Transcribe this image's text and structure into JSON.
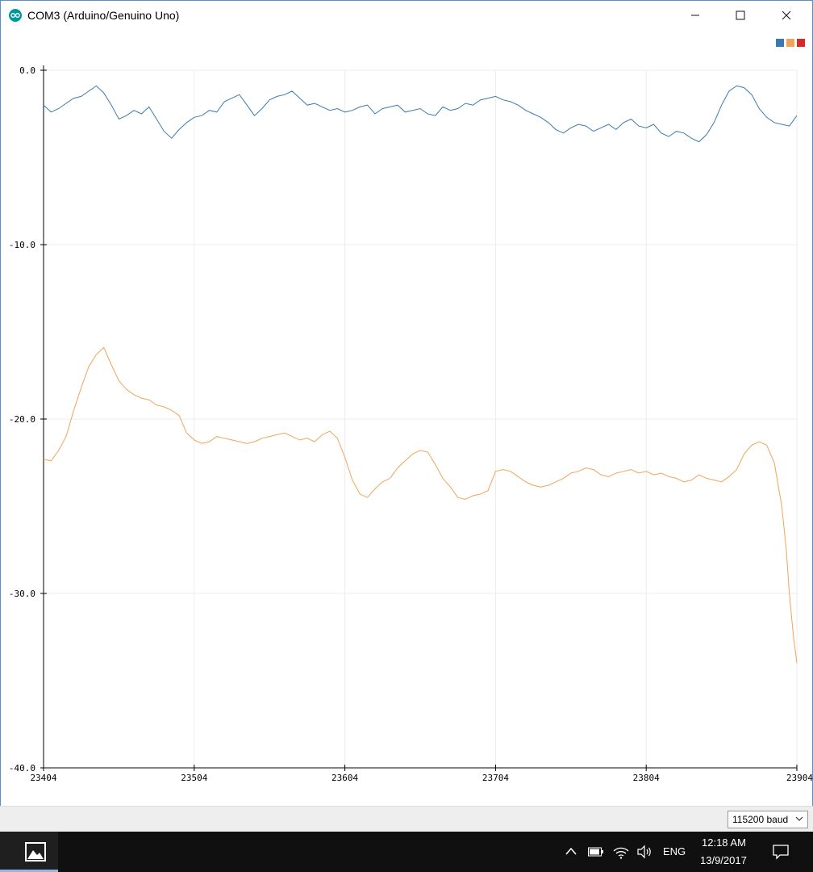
{
  "window": {
    "title": "COM3 (Arduino/Genuino Uno)",
    "icons": {
      "app": "arduino-icon",
      "minimize": "minimize-icon",
      "maximize": "maximize-icon",
      "close": "close-icon"
    }
  },
  "legend_colors": [
    "#3b7ab0",
    "#f0a45a",
    "#d42a2a"
  ],
  "chart_data": {
    "type": "line",
    "y_tick_labels": [
      "0.0",
      "-10.0",
      "-20.0",
      "-30.0",
      "-40.0"
    ],
    "y_ticks": [
      0,
      -10,
      -20,
      -30,
      -40
    ],
    "ylim": [
      -40,
      0
    ],
    "x_tick_labels": [
      "23404",
      "23504",
      "23604",
      "23704",
      "23804",
      "23904"
    ],
    "x_ticks": [
      23404,
      23504,
      23604,
      23704,
      23804,
      23904
    ],
    "xlim": [
      23404,
      23904
    ],
    "grid": true,
    "legend_position": "top-right",
    "series": [
      {
        "color": "#3b7ab0",
        "x": [
          23404,
          23409,
          23414,
          23419,
          23424,
          23429,
          23434,
          23439,
          23444,
          23449,
          23454,
          23459,
          23464,
          23469,
          23474,
          23479,
          23484,
          23489,
          23494,
          23499,
          23504,
          23509,
          23514,
          23519,
          23524,
          23529,
          23534,
          23539,
          23544,
          23549,
          23554,
          23559,
          23564,
          23569,
          23574,
          23579,
          23584,
          23589,
          23594,
          23599,
          23604,
          23609,
          23614,
          23619,
          23624,
          23629,
          23634,
          23639,
          23644,
          23649,
          23654,
          23659,
          23664,
          23669,
          23674,
          23679,
          23684,
          23689,
          23694,
          23699,
          23704,
          23709,
          23714,
          23719,
          23724,
          23729,
          23734,
          23739,
          23744,
          23749,
          23754,
          23759,
          23764,
          23769,
          23774,
          23779,
          23784,
          23789,
          23794,
          23799,
          23804,
          23809,
          23814,
          23819,
          23824,
          23829,
          23834,
          23839,
          23844,
          23849,
          23854,
          23859,
          23864,
          23869,
          23874,
          23879,
          23884,
          23889,
          23894,
          23899,
          23904
        ],
        "y": [
          -2.0,
          -2.4,
          -2.2,
          -1.9,
          -1.6,
          -1.5,
          -1.2,
          -0.9,
          -1.3,
          -2.0,
          -2.8,
          -2.6,
          -2.3,
          -2.5,
          -2.1,
          -2.8,
          -3.5,
          -3.9,
          -3.4,
          -3.0,
          -2.7,
          -2.6,
          -2.3,
          -2.4,
          -1.8,
          -1.6,
          -1.4,
          -2.0,
          -2.6,
          -2.2,
          -1.7,
          -1.5,
          -1.4,
          -1.2,
          -1.6,
          -2.0,
          -1.9,
          -2.1,
          -2.3,
          -2.2,
          -2.4,
          -2.3,
          -2.1,
          -2.0,
          -2.5,
          -2.2,
          -2.1,
          -2.0,
          -2.4,
          -2.3,
          -2.2,
          -2.5,
          -2.6,
          -2.1,
          -2.3,
          -2.2,
          -1.9,
          -2.0,
          -1.7,
          -1.6,
          -1.5,
          -1.7,
          -1.8,
          -2.0,
          -2.3,
          -2.5,
          -2.7,
          -3.0,
          -3.4,
          -3.6,
          -3.3,
          -3.1,
          -3.2,
          -3.5,
          -3.3,
          -3.1,
          -3.4,
          -3.0,
          -2.8,
          -3.2,
          -3.3,
          -3.1,
          -3.6,
          -3.8,
          -3.5,
          -3.6,
          -3.9,
          -4.1,
          -3.7,
          -3.0,
          -2.0,
          -1.2,
          -0.9,
          -1.0,
          -1.4,
          -2.2,
          -2.7,
          -3.0,
          -3.1,
          -3.2,
          -2.6
        ]
      },
      {
        "color": "#f0a45a",
        "x": [
          23404,
          23409,
          23414,
          23419,
          23424,
          23429,
          23434,
          23439,
          23444,
          23449,
          23454,
          23459,
          23464,
          23469,
          23474,
          23479,
          23484,
          23489,
          23494,
          23499,
          23504,
          23509,
          23514,
          23519,
          23524,
          23529,
          23534,
          23539,
          23544,
          23549,
          23554,
          23559,
          23564,
          23569,
          23574,
          23579,
          23584,
          23589,
          23594,
          23599,
          23604,
          23609,
          23614,
          23619,
          23624,
          23629,
          23634,
          23639,
          23644,
          23649,
          23654,
          23659,
          23664,
          23669,
          23674,
          23679,
          23684,
          23689,
          23694,
          23699,
          23704,
          23709,
          23714,
          23719,
          23724,
          23729,
          23734,
          23739,
          23744,
          23749,
          23754,
          23759,
          23764,
          23769,
          23774,
          23779,
          23784,
          23789,
          23794,
          23799,
          23804,
          23809,
          23814,
          23819,
          23824,
          23829,
          23834,
          23839,
          23844,
          23849,
          23854,
          23859,
          23864,
          23869,
          23874,
          23879,
          23884,
          23889,
          23894,
          23897,
          23899,
          23901,
          23902,
          23903,
          23904
        ],
        "y": [
          -22.3,
          -22.4,
          -21.8,
          -21.0,
          -19.5,
          -18.2,
          -17.0,
          -16.3,
          -15.9,
          -16.9,
          -17.8,
          -18.3,
          -18.6,
          -18.8,
          -18.9,
          -19.2,
          -19.3,
          -19.5,
          -19.8,
          -20.8,
          -21.2,
          -21.4,
          -21.3,
          -21.0,
          -21.1,
          -21.2,
          -21.3,
          -21.4,
          -21.3,
          -21.1,
          -21.0,
          -20.9,
          -20.8,
          -21.0,
          -21.2,
          -21.1,
          -21.3,
          -20.9,
          -20.7,
          -21.1,
          -22.2,
          -23.5,
          -24.3,
          -24.5,
          -24.0,
          -23.6,
          -23.4,
          -22.8,
          -22.4,
          -22.0,
          -21.8,
          -21.9,
          -22.6,
          -23.4,
          -23.9,
          -24.5,
          -24.6,
          -24.4,
          -24.3,
          -24.1,
          -23.0,
          -22.9,
          -23.0,
          -23.3,
          -23.6,
          -23.8,
          -23.9,
          -23.8,
          -23.6,
          -23.4,
          -23.1,
          -23.0,
          -22.8,
          -22.9,
          -23.2,
          -23.3,
          -23.1,
          -23.0,
          -22.9,
          -23.1,
          -23.0,
          -23.2,
          -23.1,
          -23.3,
          -23.4,
          -23.6,
          -23.5,
          -23.2,
          -23.4,
          -23.5,
          -23.6,
          -23.3,
          -22.9,
          -22.0,
          -21.5,
          -21.3,
          -21.5,
          -22.5,
          -25.0,
          -27.5,
          -30.0,
          -31.8,
          -32.7,
          -33.3,
          -34.0
        ]
      }
    ]
  },
  "toolbar": {
    "baud": "115200 baud"
  },
  "taskbar": {
    "lang": "ENG",
    "time": "12:18 AM",
    "date": "13/9/2017"
  }
}
